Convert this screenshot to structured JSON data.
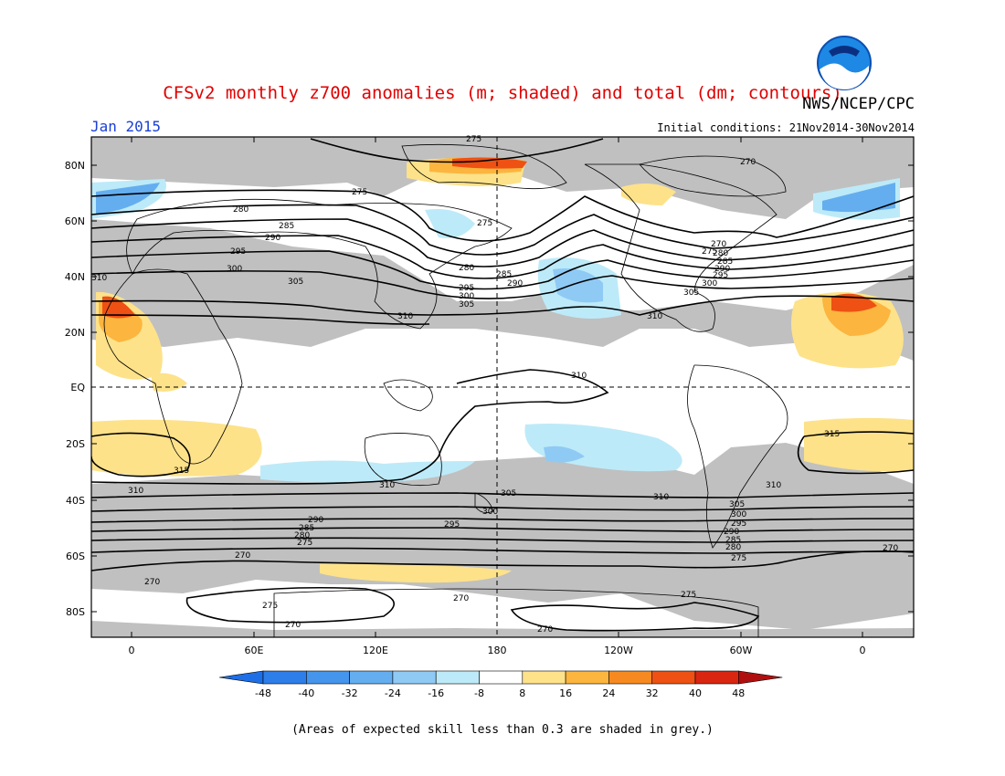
{
  "header": {
    "title": "CFSv2 monthly z700 anomalies (m; shaded) and total (dm; contours)",
    "agency": "NWS/NCEP/CPC",
    "logo_text": "NOAA",
    "month": "Jan 2015",
    "initial_conditions": "Initial conditions: 21Nov2014-30Nov2014"
  },
  "map": {
    "lat_labels": [
      "80N",
      "60N",
      "40N",
      "20N",
      "EQ",
      "20S",
      "40S",
      "60S",
      "80S"
    ],
    "lon_labels": [
      "0",
      "60E",
      "120E",
      "180",
      "120W",
      "60W",
      "0"
    ],
    "contour_labels": [
      "275",
      "270",
      "275",
      "280",
      "285",
      "290",
      "295",
      "300",
      "305",
      "310",
      "310",
      "275",
      "280",
      "285",
      "290",
      "295",
      "300",
      "305",
      "310",
      "270",
      "275",
      "280",
      "285",
      "290",
      "295",
      "300",
      "305",
      "310",
      "310",
      "315",
      "315",
      "310",
      "310",
      "305",
      "300",
      "295",
      "290",
      "285",
      "280",
      "275",
      "270",
      "310",
      "305",
      "300",
      "295",
      "290",
      "285",
      "280",
      "275",
      "270",
      "270",
      "275",
      "275",
      "270",
      "270",
      "270"
    ],
    "skill_note": "Areas of expected skill less than 0.3 are shaded in grey."
  },
  "colorbar": {
    "labels": [
      "-48",
      "-40",
      "-32",
      "-24",
      "-16",
      "-8",
      "8",
      "16",
      "24",
      "32",
      "40",
      "48"
    ],
    "colors": [
      "#1e6ee6",
      "#2d7ee8",
      "#4595ec",
      "#64aef0",
      "#8fcaf5",
      "#bdeaf8",
      "#ffffff",
      "#fde28a",
      "#fcb53e",
      "#f68a20",
      "#ee5113",
      "#d92610",
      "#b00f0f"
    ]
  },
  "footnote": "(Areas of expected skill less than 0.3 are shaded in grey.)"
}
